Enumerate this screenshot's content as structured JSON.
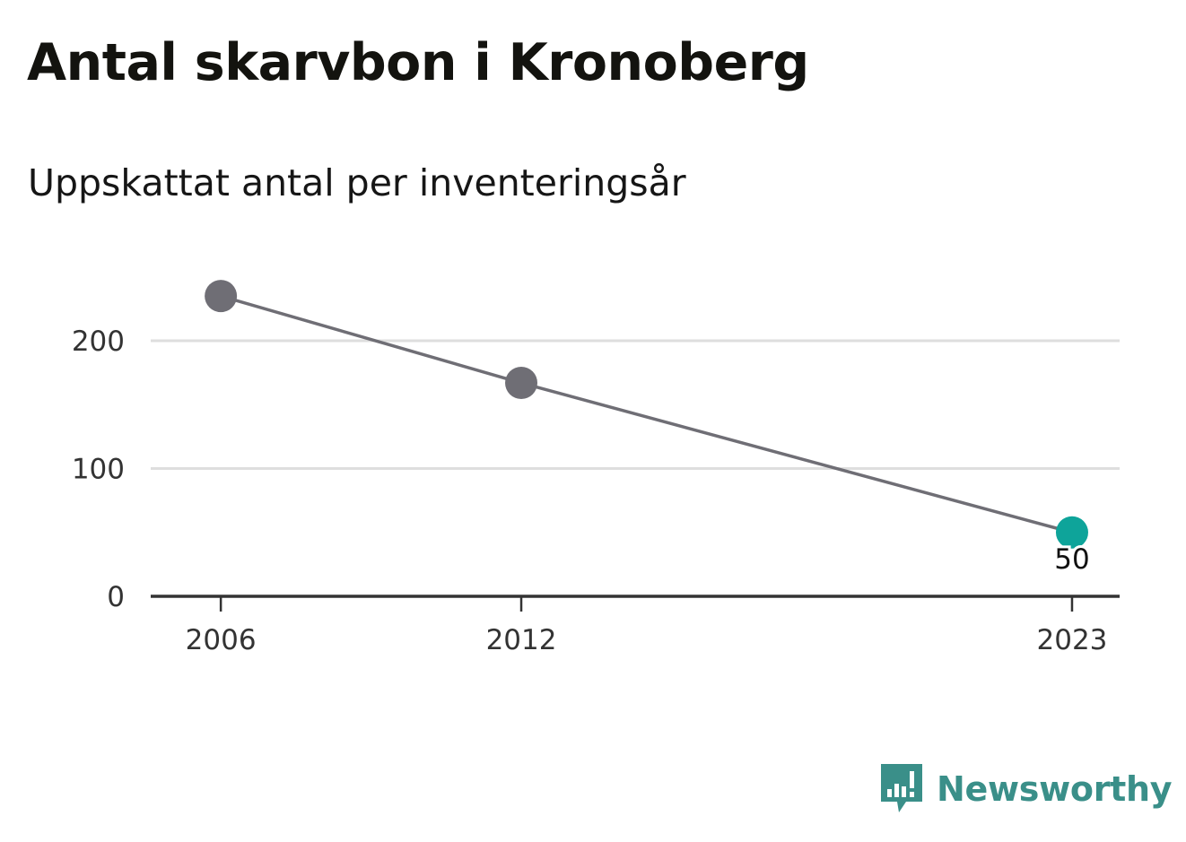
{
  "header": {
    "title": "Antal skarvbon i Kronoberg",
    "subtitle": "Uppskattat antal per inventeringsår"
  },
  "footer": {
    "brand": "Newsworthy"
  },
  "colors": {
    "line": "#6f6e75",
    "point": "#6f6e75",
    "highlight": "#0ea49a",
    "grid": "#dedede",
    "axis": "#333333",
    "brand": "#3a8f89"
  },
  "chart_data": {
    "type": "line",
    "title": "Antal skarvbon i Kronoberg",
    "subtitle": "Uppskattat antal per inventeringsår",
    "xlabel": "",
    "ylabel": "",
    "x": [
      2006,
      2012,
      2023
    ],
    "x_tick_labels": [
      "2006",
      "2012",
      "2023"
    ],
    "series": [
      {
        "values": [
          235,
          167,
          50
        ]
      }
    ],
    "highlight": {
      "x": 2023,
      "value": 50,
      "label": "50"
    },
    "ylim": [
      0,
      260
    ],
    "y_ticks": [
      0,
      100,
      200
    ],
    "y_tick_labels": [
      "0",
      "100",
      "200"
    ],
    "grid": true,
    "legend": "none"
  }
}
